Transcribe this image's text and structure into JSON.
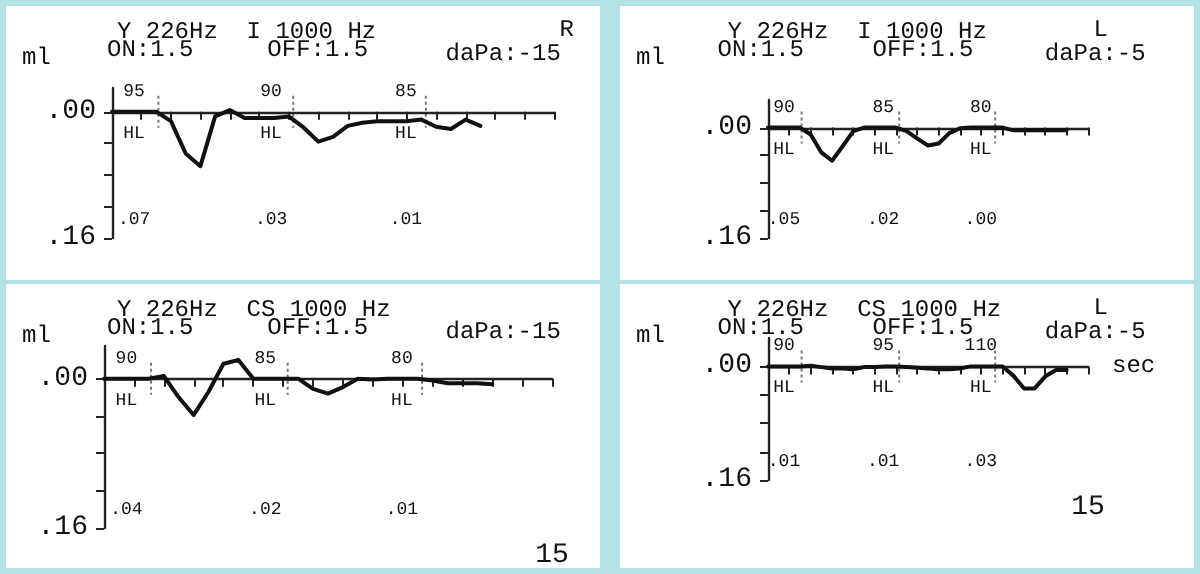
{
  "chart_data": [
    {
      "type": "line",
      "title": "Y 226Hz  I 1000 Hz",
      "subtitle": "R",
      "ylabel": "ml",
      "annotations": [
        "ON:1.5",
        "OFF:1.5",
        "daPa:-15",
        "95",
        "90",
        "85",
        "HL",
        "HL",
        "HL",
        ".07",
        ".03",
        ".01"
      ],
      "categories": [
        null,
        null,
        null,
        null,
        null,
        null,
        null,
        null,
        null,
        null,
        null,
        null,
        null,
        null,
        null,
        null,
        null,
        null,
        null,
        null,
        null,
        null,
        null,
        null,
        null,
        null,
        null,
        null,
        null,
        null,
        null
      ],
      "series": [
        {
          "color": "#111111",
          "values": [
            0,
            0,
            0,
            0,
            0.012,
            0.053,
            0.069,
            0.006,
            -0.002,
            0.008,
            0.008,
            0.008,
            0.006,
            0.02,
            0.038,
            0.032,
            0.018,
            0.014,
            0.012,
            0.012,
            0.012,
            0.01,
            0.019,
            0.022,
            0.01,
            0.018,
            null,
            null,
            null,
            null,
            null
          ]
        }
      ],
      "ylim": [
        0.16,
        -0.03
      ],
      "yticks": [
        {
          "value": 0,
          "label": ".00"
        },
        {
          "value": 0.04,
          "label": null
        },
        {
          "value": 0.08,
          "label": null
        },
        {
          "value": 0.12,
          "label": null
        },
        {
          "value": 0.16,
          "label": ".16"
        }
      ],
      "tick_labels": "y",
      "line_style": "solid"
    },
    {
      "type": "line",
      "title": "Y 226Hz  CS 1000 Hz",
      "ylabel": "ml",
      "annotations": [
        "ON:1.5",
        "OFF:1.5",
        "daPa:-15",
        "90",
        "85",
        "80",
        "HL",
        "HL",
        "HL",
        ".04",
        ".02",
        ".01",
        "15"
      ],
      "categories": [
        null,
        null,
        null,
        null,
        null,
        null,
        null,
        null,
        null,
        null,
        null,
        null,
        null,
        null,
        null,
        null,
        null,
        null,
        null,
        null,
        null,
        null,
        null,
        null,
        null,
        null,
        null,
        null,
        null,
        null,
        null
      ],
      "series": [
        {
          "color": "#111111",
          "values": [
            0,
            0,
            0,
            0,
            -0.003,
            0.02,
            0.039,
            0.014,
            -0.016,
            -0.02,
            0,
            0,
            0,
            0,
            0.011,
            0.016,
            0.009,
            0,
            0.001,
            0,
            0,
            0,
            0.002,
            0.005,
            0.005,
            0.005,
            0.006,
            null,
            null,
            null,
            null
          ]
        }
      ],
      "ylim": [
        0.16,
        -0.035
      ],
      "yticks": [
        {
          "value": 0,
          "label": ".00"
        },
        {
          "value": 0.04,
          "label": null
        },
        {
          "value": 0.08,
          "label": null
        },
        {
          "value": 0.12,
          "label": null
        },
        {
          "value": 0.16,
          "label": ".16"
        }
      ],
      "tick_labels": "y",
      "line_style": "solid"
    },
    {
      "type": "line",
      "title": "Y 226Hz  I 1000 Hz",
      "subtitle": "L",
      "ylabel": "ml",
      "annotations": [
        "ON:1.5",
        "OFF:1.5",
        "daPa:-5",
        "90",
        "85",
        "80",
        "HL",
        "HL",
        "HL",
        ".05",
        ".02",
        ".00"
      ],
      "categories": [
        null,
        null,
        null,
        null,
        null,
        null,
        null,
        null,
        null,
        null,
        null,
        null,
        null,
        null,
        null,
        null,
        null,
        null,
        null,
        null,
        null,
        null,
        null,
        null,
        null,
        null,
        null,
        null,
        null,
        null,
        null
      ],
      "series": [
        {
          "color": "#111111",
          "values": [
            0,
            0,
            0,
            0,
            0.01,
            0.036,
            0.048,
            0.027,
            0.005,
            0,
            0,
            0,
            0,
            0.005,
            0.016,
            0.026,
            0.023,
            0.008,
            0.001,
            0,
            0,
            0,
            0,
            0.004,
            0.004,
            0.004,
            0.004,
            0.004,
            0.004,
            null,
            null
          ]
        }
      ],
      "ylim": [
        0.16,
        -0.04
      ],
      "yticks": [
        {
          "value": 0,
          "label": ".00"
        },
        {
          "value": 0.04,
          "label": null
        },
        {
          "value": 0.08,
          "label": null
        },
        {
          "value": 0.12,
          "label": null
        },
        {
          "value": 0.16,
          "label": ".16"
        }
      ],
      "tick_labels": "y",
      "line_style": "solid"
    },
    {
      "type": "line",
      "title": "Y 226Hz  CS 1000 Hz",
      "subtitle": "L",
      "ylabel": "ml",
      "xlabel": "sec",
      "annotations": [
        "ON:1.5",
        "OFF:1.5",
        "daPa:-5",
        "90",
        "95",
        "110",
        "HL",
        "HL",
        "HL",
        ".01",
        ".01",
        ".03",
        "15"
      ],
      "categories": [
        null,
        null,
        null,
        null,
        null,
        null,
        null,
        null,
        null,
        null,
        null,
        null,
        null,
        null,
        null,
        null,
        null,
        null,
        null,
        null,
        null,
        null,
        null,
        null,
        null,
        null,
        null,
        null,
        null,
        null,
        null
      ],
      "series": [
        {
          "color": "#111111",
          "values": [
            0,
            0,
            0,
            0,
            -0.001,
            0.001,
            0.003,
            0.003,
            0.004,
            0.001,
            0.001,
            0,
            0,
            0.001,
            0.002,
            0.003,
            0.004,
            0.004,
            0.003,
            0,
            0,
            0,
            0,
            0.013,
            0.031,
            0.031,
            0.014,
            0.005,
            0.005,
            null,
            null
          ]
        }
      ],
      "ylim": [
        0.16,
        -0.04
      ],
      "yticks": [
        {
          "value": 0,
          "label": ".00"
        },
        {
          "value": 0.04,
          "label": null
        },
        {
          "value": 0.08,
          "label": null
        },
        {
          "value": 0.12,
          "label": null
        },
        {
          "value": 0.16,
          "label": ".16"
        }
      ],
      "tick_labels": "y",
      "line_style": "solid"
    }
  ]
}
